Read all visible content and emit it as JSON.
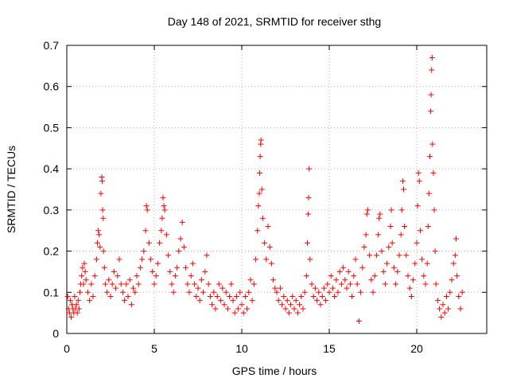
{
  "chart_data": {
    "type": "scatter",
    "title": "Day 148 of 2021, SRMTID for receiver sthg",
    "xlabel": "GPS time / hours",
    "ylabel": "SRMTID / TECUs",
    "xlim": [
      0,
      24
    ],
    "ylim": [
      0,
      0.7
    ],
    "xticks": [
      0,
      5,
      10,
      15,
      20
    ],
    "yticks": [
      0,
      0.1,
      0.2,
      0.3,
      0.4,
      0.5,
      0.6,
      0.7
    ],
    "xtick_labels": [
      "0",
      "5",
      "10",
      "15",
      "20"
    ],
    "ytick_labels": [
      "0",
      "0.1",
      "0.2",
      "0.3",
      "0.4",
      "0.5",
      "0.6",
      "0.7"
    ],
    "grid": true,
    "legend": "none",
    "marker": "plus",
    "color": "#ff0000",
    "series": [
      {
        "name": "SRMTID",
        "points": [
          [
            0.05,
            0.09
          ],
          [
            0.1,
            0.06
          ],
          [
            0.15,
            0.05
          ],
          [
            0.2,
            0.08
          ],
          [
            0.25,
            0.04
          ],
          [
            0.3,
            0.07
          ],
          [
            0.35,
            0.06
          ],
          [
            0.4,
            0.05
          ],
          [
            0.45,
            0.09
          ],
          [
            0.5,
            0.06
          ],
          [
            0.55,
            0.07
          ],
          [
            0.6,
            0.05
          ],
          [
            0.65,
            0.08
          ],
          [
            0.7,
            0.06
          ],
          [
            0.75,
            0.1
          ],
          [
            0.8,
            0.12
          ],
          [
            0.85,
            0.14
          ],
          [
            0.9,
            0.16
          ],
          [
            0.95,
            0.12
          ],
          [
            1.0,
            0.17
          ],
          [
            1.05,
            0.15
          ],
          [
            1.1,
            0.13
          ],
          [
            1.2,
            0.1
          ],
          [
            1.3,
            0.08
          ],
          [
            1.4,
            0.12
          ],
          [
            1.5,
            0.09
          ],
          [
            1.6,
            0.14
          ],
          [
            1.7,
            0.18
          ],
          [
            1.75,
            0.22
          ],
          [
            1.8,
            0.25
          ],
          [
            1.85,
            0.24
          ],
          [
            1.9,
            0.21
          ],
          [
            1.95,
            0.34
          ],
          [
            2.0,
            0.38
          ],
          [
            2.02,
            0.37
          ],
          [
            2.05,
            0.3
          ],
          [
            2.08,
            0.28
          ],
          [
            2.1,
            0.2
          ],
          [
            2.15,
            0.16
          ],
          [
            2.2,
            0.12
          ],
          [
            2.3,
            0.1
          ],
          [
            2.4,
            0.13
          ],
          [
            2.5,
            0.09
          ],
          [
            2.6,
            0.12
          ],
          [
            2.7,
            0.15
          ],
          [
            2.8,
            0.11
          ],
          [
            2.9,
            0.14
          ],
          [
            3.0,
            0.18
          ],
          [
            3.1,
            0.12
          ],
          [
            3.2,
            0.1
          ],
          [
            3.3,
            0.08
          ],
          [
            3.4,
            0.12
          ],
          [
            3.5,
            0.09
          ],
          [
            3.6,
            0.13
          ],
          [
            3.7,
            0.07
          ],
          [
            3.8,
            0.11
          ],
          [
            3.9,
            0.1
          ],
          [
            4.0,
            0.14
          ],
          [
            4.1,
            0.12
          ],
          [
            4.2,
            0.16
          ],
          [
            4.3,
            0.18
          ],
          [
            4.4,
            0.2
          ],
          [
            4.5,
            0.25
          ],
          [
            4.55,
            0.31
          ],
          [
            4.6,
            0.3
          ],
          [
            4.7,
            0.22
          ],
          [
            4.8,
            0.18
          ],
          [
            4.9,
            0.15
          ],
          [
            5.0,
            0.12
          ],
          [
            5.1,
            0.14
          ],
          [
            5.2,
            0.17
          ],
          [
            5.3,
            0.22
          ],
          [
            5.4,
            0.25
          ],
          [
            5.45,
            0.28
          ],
          [
            5.5,
            0.33
          ],
          [
            5.55,
            0.31
          ],
          [
            5.6,
            0.3
          ],
          [
            5.7,
            0.24
          ],
          [
            5.8,
            0.19
          ],
          [
            5.9,
            0.15
          ],
          [
            6.0,
            0.12
          ],
          [
            6.1,
            0.1
          ],
          [
            6.2,
            0.14
          ],
          [
            6.3,
            0.16
          ],
          [
            6.4,
            0.2
          ],
          [
            6.5,
            0.23
          ],
          [
            6.6,
            0.27
          ],
          [
            6.7,
            0.21
          ],
          [
            6.8,
            0.16
          ],
          [
            6.9,
            0.12
          ],
          [
            7.0,
            0.1
          ],
          [
            7.1,
            0.14
          ],
          [
            7.2,
            0.17
          ],
          [
            7.3,
            0.12
          ],
          [
            7.4,
            0.09
          ],
          [
            7.5,
            0.11
          ],
          [
            7.6,
            0.08
          ],
          [
            7.7,
            0.13
          ],
          [
            7.8,
            0.1
          ],
          [
            7.9,
            0.15
          ],
          [
            8.0,
            0.19
          ],
          [
            8.1,
            0.12
          ],
          [
            8.2,
            0.09
          ],
          [
            8.3,
            0.07
          ],
          [
            8.4,
            0.1
          ],
          [
            8.5,
            0.06
          ],
          [
            8.6,
            0.09
          ],
          [
            8.7,
            0.12
          ],
          [
            8.8,
            0.08
          ],
          [
            8.9,
            0.11
          ],
          [
            9.0,
            0.07
          ],
          [
            9.1,
            0.1
          ],
          [
            9.2,
            0.06
          ],
          [
            9.3,
            0.09
          ],
          [
            9.4,
            0.12
          ],
          [
            9.5,
            0.08
          ],
          [
            9.6,
            0.05
          ],
          [
            9.7,
            0.09
          ],
          [
            9.8,
            0.06
          ],
          [
            9.9,
            0.1
          ],
          [
            10.0,
            0.07
          ],
          [
            10.1,
            0.05
          ],
          [
            10.2,
            0.09
          ],
          [
            10.3,
            0.06
          ],
          [
            10.4,
            0.1
          ],
          [
            10.5,
            0.13
          ],
          [
            10.6,
            0.08
          ],
          [
            10.7,
            0.12
          ],
          [
            10.8,
            0.18
          ],
          [
            10.9,
            0.25
          ],
          [
            10.95,
            0.31
          ],
          [
            11.0,
            0.34
          ],
          [
            11.02,
            0.39
          ],
          [
            11.05,
            0.43
          ],
          [
            11.08,
            0.46
          ],
          [
            11.1,
            0.47
          ],
          [
            11.15,
            0.35
          ],
          [
            11.2,
            0.28
          ],
          [
            11.3,
            0.22
          ],
          [
            11.4,
            0.18
          ],
          [
            11.5,
            0.26
          ],
          [
            11.6,
            0.21
          ],
          [
            11.7,
            0.17
          ],
          [
            11.8,
            0.13
          ],
          [
            11.9,
            0.11
          ],
          [
            12.0,
            0.1
          ],
          [
            12.1,
            0.08
          ],
          [
            12.2,
            0.11
          ],
          [
            12.3,
            0.07
          ],
          [
            12.4,
            0.09
          ],
          [
            12.5,
            0.06
          ],
          [
            12.6,
            0.08
          ],
          [
            12.7,
            0.05
          ],
          [
            12.8,
            0.07
          ],
          [
            12.9,
            0.09
          ],
          [
            13.0,
            0.06
          ],
          [
            13.1,
            0.08
          ],
          [
            13.2,
            0.05
          ],
          [
            13.3,
            0.07
          ],
          [
            13.4,
            0.09
          ],
          [
            13.5,
            0.06
          ],
          [
            13.6,
            0.1
          ],
          [
            13.7,
            0.14
          ],
          [
            13.75,
            0.22
          ],
          [
            13.8,
            0.29
          ],
          [
            13.82,
            0.33
          ],
          [
            13.85,
            0.4
          ],
          [
            13.9,
            0.18
          ],
          [
            14.0,
            0.12
          ],
          [
            14.1,
            0.09
          ],
          [
            14.2,
            0.11
          ],
          [
            14.3,
            0.08
          ],
          [
            14.4,
            0.1
          ],
          [
            14.5,
            0.07
          ],
          [
            14.6,
            0.09
          ],
          [
            14.7,
            0.11
          ],
          [
            14.8,
            0.08
          ],
          [
            14.9,
            0.12
          ],
          [
            15.0,
            0.1
          ],
          [
            15.1,
            0.14
          ],
          [
            15.2,
            0.11
          ],
          [
            15.3,
            0.09
          ],
          [
            15.4,
            0.13
          ],
          [
            15.5,
            0.1
          ],
          [
            15.6,
            0.15
          ],
          [
            15.7,
            0.12
          ],
          [
            15.8,
            0.16
          ],
          [
            15.9,
            0.13
          ],
          [
            16.0,
            0.11
          ],
          [
            16.1,
            0.15
          ],
          [
            16.2,
            0.12
          ],
          [
            16.3,
            0.09
          ],
          [
            16.4,
            0.14
          ],
          [
            16.5,
            0.18
          ],
          [
            16.6,
            0.12
          ],
          [
            16.7,
            0.03
          ],
          [
            16.8,
            0.1
          ],
          [
            16.9,
            0.16
          ],
          [
            17.0,
            0.21
          ],
          [
            17.1,
            0.24
          ],
          [
            17.15,
            0.29
          ],
          [
            17.2,
            0.3
          ],
          [
            17.3,
            0.19
          ],
          [
            17.4,
            0.13
          ],
          [
            17.5,
            0.1
          ],
          [
            17.6,
            0.14
          ],
          [
            17.7,
            0.19
          ],
          [
            17.8,
            0.24
          ],
          [
            17.85,
            0.28
          ],
          [
            17.9,
            0.29
          ],
          [
            18.0,
            0.2
          ],
          [
            18.1,
            0.15
          ],
          [
            18.2,
            0.12
          ],
          [
            18.3,
            0.17
          ],
          [
            18.4,
            0.21
          ],
          [
            18.5,
            0.26
          ],
          [
            18.55,
            0.3
          ],
          [
            18.6,
            0.22
          ],
          [
            18.7,
            0.16
          ],
          [
            18.8,
            0.12
          ],
          [
            18.9,
            0.15
          ],
          [
            19.0,
            0.19
          ],
          [
            19.1,
            0.24
          ],
          [
            19.15,
            0.3
          ],
          [
            19.2,
            0.37
          ],
          [
            19.25,
            0.35
          ],
          [
            19.3,
            0.26
          ],
          [
            19.4,
            0.19
          ],
          [
            19.5,
            0.14
          ],
          [
            19.6,
            0.11
          ],
          [
            19.7,
            0.09
          ],
          [
            19.8,
            0.13
          ],
          [
            19.9,
            0.17
          ],
          [
            20.0,
            0.22
          ],
          [
            20.05,
            0.31
          ],
          [
            20.1,
            0.39
          ],
          [
            20.15,
            0.37
          ],
          [
            20.2,
            0.25
          ],
          [
            20.3,
            0.18
          ],
          [
            20.4,
            0.14
          ],
          [
            20.5,
            0.12
          ],
          [
            20.6,
            0.17
          ],
          [
            20.65,
            0.26
          ],
          [
            20.7,
            0.34
          ],
          [
            20.75,
            0.43
          ],
          [
            20.8,
            0.54
          ],
          [
            20.82,
            0.58
          ],
          [
            20.85,
            0.64
          ],
          [
            20.88,
            0.67
          ],
          [
            20.9,
            0.46
          ],
          [
            20.95,
            0.39
          ],
          [
            21.0,
            0.3
          ],
          [
            21.05,
            0.2
          ],
          [
            21.1,
            0.12
          ],
          [
            21.2,
            0.08
          ],
          [
            21.3,
            0.06
          ],
          [
            21.4,
            0.04
          ],
          [
            21.5,
            0.07
          ],
          [
            21.6,
            0.05
          ],
          [
            21.7,
            0.09
          ],
          [
            21.8,
            0.06
          ],
          [
            21.9,
            0.1
          ],
          [
            22.0,
            0.13
          ],
          [
            22.1,
            0.17
          ],
          [
            22.2,
            0.19
          ],
          [
            22.25,
            0.23
          ],
          [
            22.3,
            0.14
          ],
          [
            22.4,
            0.09
          ],
          [
            22.5,
            0.06
          ],
          [
            22.6,
            0.1
          ]
        ]
      }
    ]
  }
}
